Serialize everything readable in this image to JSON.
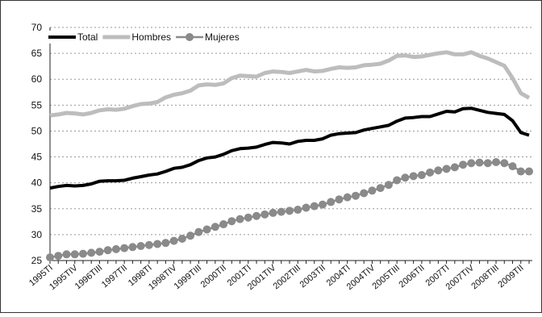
{
  "chart_data": {
    "type": "line",
    "categories": [
      "1995TI",
      null,
      null,
      "1995TIV",
      null,
      null,
      "1996TIII",
      null,
      null,
      "1997TII",
      null,
      null,
      "1998TI",
      null,
      null,
      "1998TIV",
      null,
      null,
      "1999TIII",
      null,
      null,
      "2000TII",
      null,
      null,
      "2001TI",
      null,
      null,
      "2001TIV",
      null,
      null,
      "2002TIII",
      null,
      null,
      "2003TII",
      null,
      null,
      "2004TI",
      null,
      null,
      "2004TIV",
      null,
      null,
      "2005TIII",
      null,
      null,
      "2006TII",
      null,
      null,
      "2007TI",
      null,
      null,
      "2007TIV",
      null,
      null,
      "2008TIII",
      null,
      null,
      "2009TII",
      null
    ],
    "series": [
      {
        "name": "Total",
        "color": "#000000",
        "values": [
          39.0,
          39.3,
          39.5,
          39.4,
          39.5,
          39.8,
          40.3,
          40.4,
          40.4,
          40.5,
          40.9,
          41.2,
          41.5,
          41.7,
          42.2,
          42.8,
          43.0,
          43.5,
          44.3,
          44.8,
          45.0,
          45.5,
          46.2,
          46.6,
          46.7,
          46.9,
          47.4,
          47.8,
          47.7,
          47.5,
          48.0,
          48.2,
          48.2,
          48.5,
          49.2,
          49.5,
          49.6,
          49.7,
          50.2,
          50.5,
          50.8,
          51.1,
          51.9,
          52.5,
          52.6,
          52.8,
          52.8,
          53.3,
          53.8,
          53.7,
          54.3,
          54.4,
          54.0,
          53.6,
          53.4,
          53.2,
          52.0,
          49.7,
          49.2
        ]
      },
      {
        "name": "Hombres",
        "color": "#bdbdbd",
        "values": [
          53.0,
          53.2,
          53.5,
          53.4,
          53.2,
          53.5,
          54.0,
          54.2,
          54.1,
          54.3,
          54.8,
          55.2,
          55.3,
          55.6,
          56.5,
          57.0,
          57.3,
          57.8,
          58.8,
          59.0,
          58.9,
          59.2,
          60.2,
          60.7,
          60.6,
          60.5,
          61.2,
          61.5,
          61.4,
          61.2,
          61.5,
          61.8,
          61.5,
          61.6,
          62.0,
          62.3,
          62.2,
          62.3,
          62.7,
          62.8,
          63.0,
          63.6,
          64.5,
          64.6,
          64.3,
          64.4,
          64.7,
          65.0,
          65.2,
          64.8,
          64.8,
          65.2,
          64.5,
          64.0,
          63.3,
          62.6,
          60.2,
          57.3,
          56.4
        ]
      },
      {
        "name": "Mujeres",
        "color": "#8a8a8a",
        "marker": "circle",
        "values": [
          25.6,
          25.9,
          26.2,
          26.2,
          26.3,
          26.5,
          26.7,
          27.0,
          27.2,
          27.4,
          27.6,
          27.8,
          28.0,
          28.2,
          28.4,
          28.8,
          29.2,
          29.8,
          30.5,
          31.0,
          31.5,
          32.0,
          32.6,
          33.0,
          33.3,
          33.6,
          33.9,
          34.2,
          34.4,
          34.6,
          34.8,
          35.2,
          35.5,
          35.8,
          36.3,
          36.8,
          37.2,
          37.5,
          38.0,
          38.5,
          39.0,
          39.6,
          40.5,
          41.0,
          41.3,
          41.5,
          42.0,
          42.4,
          42.7,
          43.0,
          43.5,
          43.8,
          43.9,
          43.8,
          44.0,
          43.8,
          43.2,
          42.2,
          42.2
        ]
      }
    ],
    "ylim": [
      25,
      70
    ],
    "yticks": [
      25,
      30,
      35,
      40,
      45,
      50,
      55,
      60,
      65,
      70
    ],
    "grid": true
  }
}
